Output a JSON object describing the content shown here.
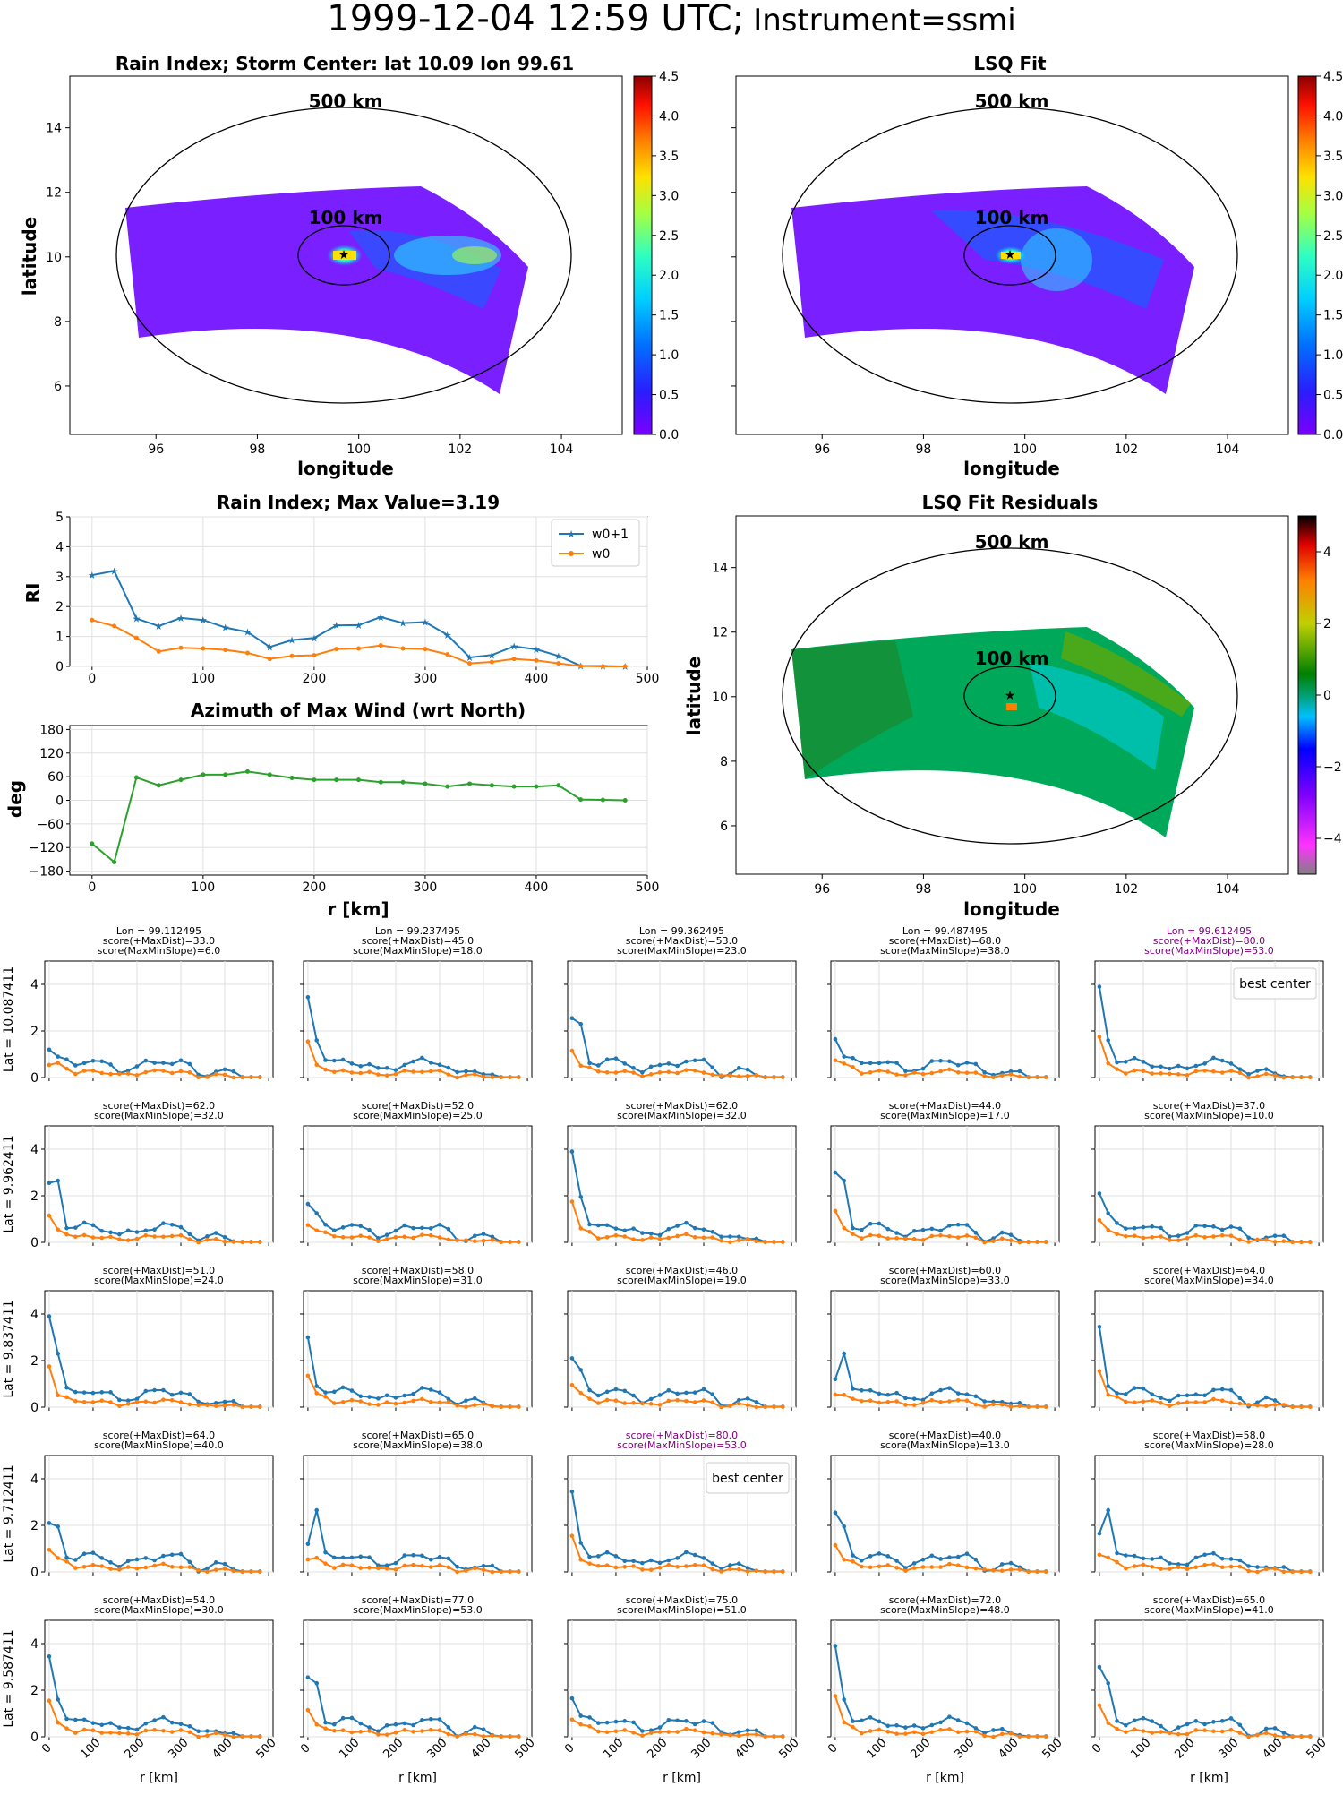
{
  "header": {
    "title_main": "1999-12-04 12:59 UTC;",
    "title_instrument": "Instrument=ssmi"
  },
  "maps": {
    "rain_index_title": "Rain Index; Storm Center: lat 10.09 lon 99.61",
    "lsq_fit_title": "LSQ Fit",
    "residuals_title": "LSQ Fit Residuals",
    "x_label": "longitude",
    "y_label": "latitude",
    "ring_outer_label": "500 km",
    "ring_inner_label": "100 km",
    "storm_center": {
      "lat": 10.09,
      "lon": 99.61
    },
    "x_ticks": [
      "96",
      "98",
      "100",
      "102",
      "104"
    ],
    "y_ticks": [
      "6",
      "8",
      "10",
      "12",
      "14"
    ],
    "colorbar_ticks": [
      "0.0",
      "0.5",
      "1.0",
      "1.5",
      "2.0",
      "2.5",
      "3.0",
      "3.5",
      "4.0",
      "4.5"
    ],
    "residual_colorbar_ticks": [
      "−4",
      "−2",
      "0",
      "2",
      "4"
    ]
  },
  "chart_data": [
    {
      "type": "line",
      "title": "Rain Index; Max Value=3.19",
      "ylabel": "RI",
      "xlim": [
        -20,
        500
      ],
      "ylim": [
        0,
        5
      ],
      "x_ticks": [
        "0",
        "100",
        "200",
        "300",
        "400",
        "500"
      ],
      "y_ticks": [
        "0",
        "1",
        "2",
        "3",
        "4",
        "5"
      ],
      "x": [
        0,
        20,
        40,
        60,
        80,
        100,
        120,
        140,
        160,
        180,
        200,
        220,
        240,
        260,
        280,
        300,
        320,
        340,
        360,
        380,
        400,
        420,
        440,
        460,
        480
      ],
      "series": [
        {
          "name": "w0+1",
          "color": "#1f77b4",
          "values": [
            3.05,
            3.19,
            1.6,
            1.35,
            1.62,
            1.55,
            1.3,
            1.15,
            0.65,
            0.88,
            0.95,
            1.37,
            1.38,
            1.65,
            1.45,
            1.48,
            1.05,
            0.3,
            0.38,
            0.67,
            0.57,
            0.35,
            0.02,
            0.01,
            0.0
          ]
        },
        {
          "name": "w0",
          "color": "#ff7f0e",
          "values": [
            1.55,
            1.35,
            0.95,
            0.5,
            0.62,
            0.6,
            0.55,
            0.45,
            0.25,
            0.35,
            0.37,
            0.58,
            0.6,
            0.7,
            0.6,
            0.58,
            0.4,
            0.1,
            0.15,
            0.25,
            0.2,
            0.1,
            0.01,
            0.0,
            0.0
          ]
        }
      ]
    },
    {
      "type": "line",
      "title": "Azimuth of Max Wind (wrt North)",
      "ylabel": "deg",
      "xlabel": "r [km]",
      "xlim": [
        -20,
        500
      ],
      "ylim": [
        -190,
        190
      ],
      "x_ticks": [
        "0",
        "100",
        "200",
        "300",
        "400",
        "500"
      ],
      "y_ticks": [
        "180",
        "120",
        "60",
        "0",
        "−60",
        "−120",
        "−180"
      ],
      "x": [
        0,
        20,
        40,
        60,
        80,
        100,
        120,
        140,
        160,
        180,
        200,
        220,
        240,
        260,
        280,
        300,
        320,
        340,
        360,
        380,
        400,
        420,
        440,
        460,
        480
      ],
      "series": [
        {
          "color": "#2ca02c",
          "values": [
            -110,
            -157,
            58,
            38,
            52,
            65,
            65,
            73,
            65,
            57,
            52,
            52,
            52,
            46,
            46,
            42,
            35,
            42,
            38,
            35,
            35,
            38,
            2,
            1,
            0
          ]
        }
      ]
    }
  ],
  "grid": {
    "x_ticks": [
      "0",
      "100",
      "200",
      "300",
      "400",
      "500"
    ],
    "y_ticks": [
      "0",
      "2",
      "4"
    ],
    "xlabel": "r [km]",
    "lat_labels": [
      "Lat = 10.087411",
      "Lat = 9.962411",
      "Lat = 9.837411",
      "Lat = 9.712411",
      "Lat = 9.587411"
    ],
    "lon_labels": [
      "Lon = 99.112495",
      "Lon = 99.237495",
      "Lon = 99.362495",
      "Lon = 99.487495",
      "Lon = 99.612495"
    ],
    "best_center_label": "best center",
    "cells": [
      [
        {
          "l1": "score(+MaxDist)=33.0",
          "l2": "score(MaxMinSlope)=6.0"
        },
        {
          "l1": "score(+MaxDist)=45.0",
          "l2": "score(MaxMinSlope)=18.0"
        },
        {
          "l1": "score(+MaxDist)=53.0",
          "l2": "score(MaxMinSlope)=23.0"
        },
        {
          "l1": "score(+MaxDist)=68.0",
          "l2": "score(MaxMinSlope)=38.0"
        },
        {
          "l1": "score(+MaxDist)=80.0",
          "l2": "score(MaxMinSlope)=53.0",
          "highlight": true,
          "best": true
        }
      ],
      [
        {
          "l1": "score(+MaxDist)=62.0",
          "l2": "score(MaxMinSlope)=32.0"
        },
        {
          "l1": "score(+MaxDist)=52.0",
          "l2": "score(MaxMinSlope)=25.0"
        },
        {
          "l1": "score(+MaxDist)=62.0",
          "l2": "score(MaxMinSlope)=32.0"
        },
        {
          "l1": "score(+MaxDist)=44.0",
          "l2": "score(MaxMinSlope)=17.0"
        },
        {
          "l1": "score(+MaxDist)=37.0",
          "l2": "score(MaxMinSlope)=10.0"
        }
      ],
      [
        {
          "l1": "score(+MaxDist)=51.0",
          "l2": "score(MaxMinSlope)=24.0"
        },
        {
          "l1": "score(+MaxDist)=58.0",
          "l2": "score(MaxMinSlope)=31.0"
        },
        {
          "l1": "score(+MaxDist)=46.0",
          "l2": "score(MaxMinSlope)=19.0"
        },
        {
          "l1": "score(+MaxDist)=60.0",
          "l2": "score(MaxMinSlope)=33.0"
        },
        {
          "l1": "score(+MaxDist)=64.0",
          "l2": "score(MaxMinSlope)=34.0"
        }
      ],
      [
        {
          "l1": "score(+MaxDist)=64.0",
          "l2": "score(MaxMinSlope)=40.0"
        },
        {
          "l1": "score(+MaxDist)=65.0",
          "l2": "score(MaxMinSlope)=38.0"
        },
        {
          "l1": "score(+MaxDist)=80.0",
          "l2": "score(MaxMinSlope)=53.0",
          "highlight": true,
          "best": true
        },
        {
          "l1": "score(+MaxDist)=40.0",
          "l2": "score(MaxMinSlope)=13.0"
        },
        {
          "l1": "score(+MaxDist)=58.0",
          "l2": "score(MaxMinSlope)=28.0"
        }
      ],
      [
        {
          "l1": "score(+MaxDist)=54.0",
          "l2": "score(MaxMinSlope)=30.0"
        },
        {
          "l1": "score(+MaxDist)=77.0",
          "l2": "score(MaxMinSlope)=53.0"
        },
        {
          "l1": "score(+MaxDist)=75.0",
          "l2": "score(MaxMinSlope)=51.0"
        },
        {
          "l1": "score(+MaxDist)=72.0",
          "l2": "score(MaxMinSlope)=48.0"
        },
        {
          "l1": "score(+MaxDist)=65.0",
          "l2": "score(MaxMinSlope)=41.0"
        }
      ]
    ]
  },
  "colors": {
    "w0p1": "#1f77b4",
    "w0": "#ff7f0e",
    "azimuth": "#2ca02c",
    "highlight": "#800080",
    "swath_rain": "#7a1fff",
    "swath_resid": "#00a85a"
  }
}
